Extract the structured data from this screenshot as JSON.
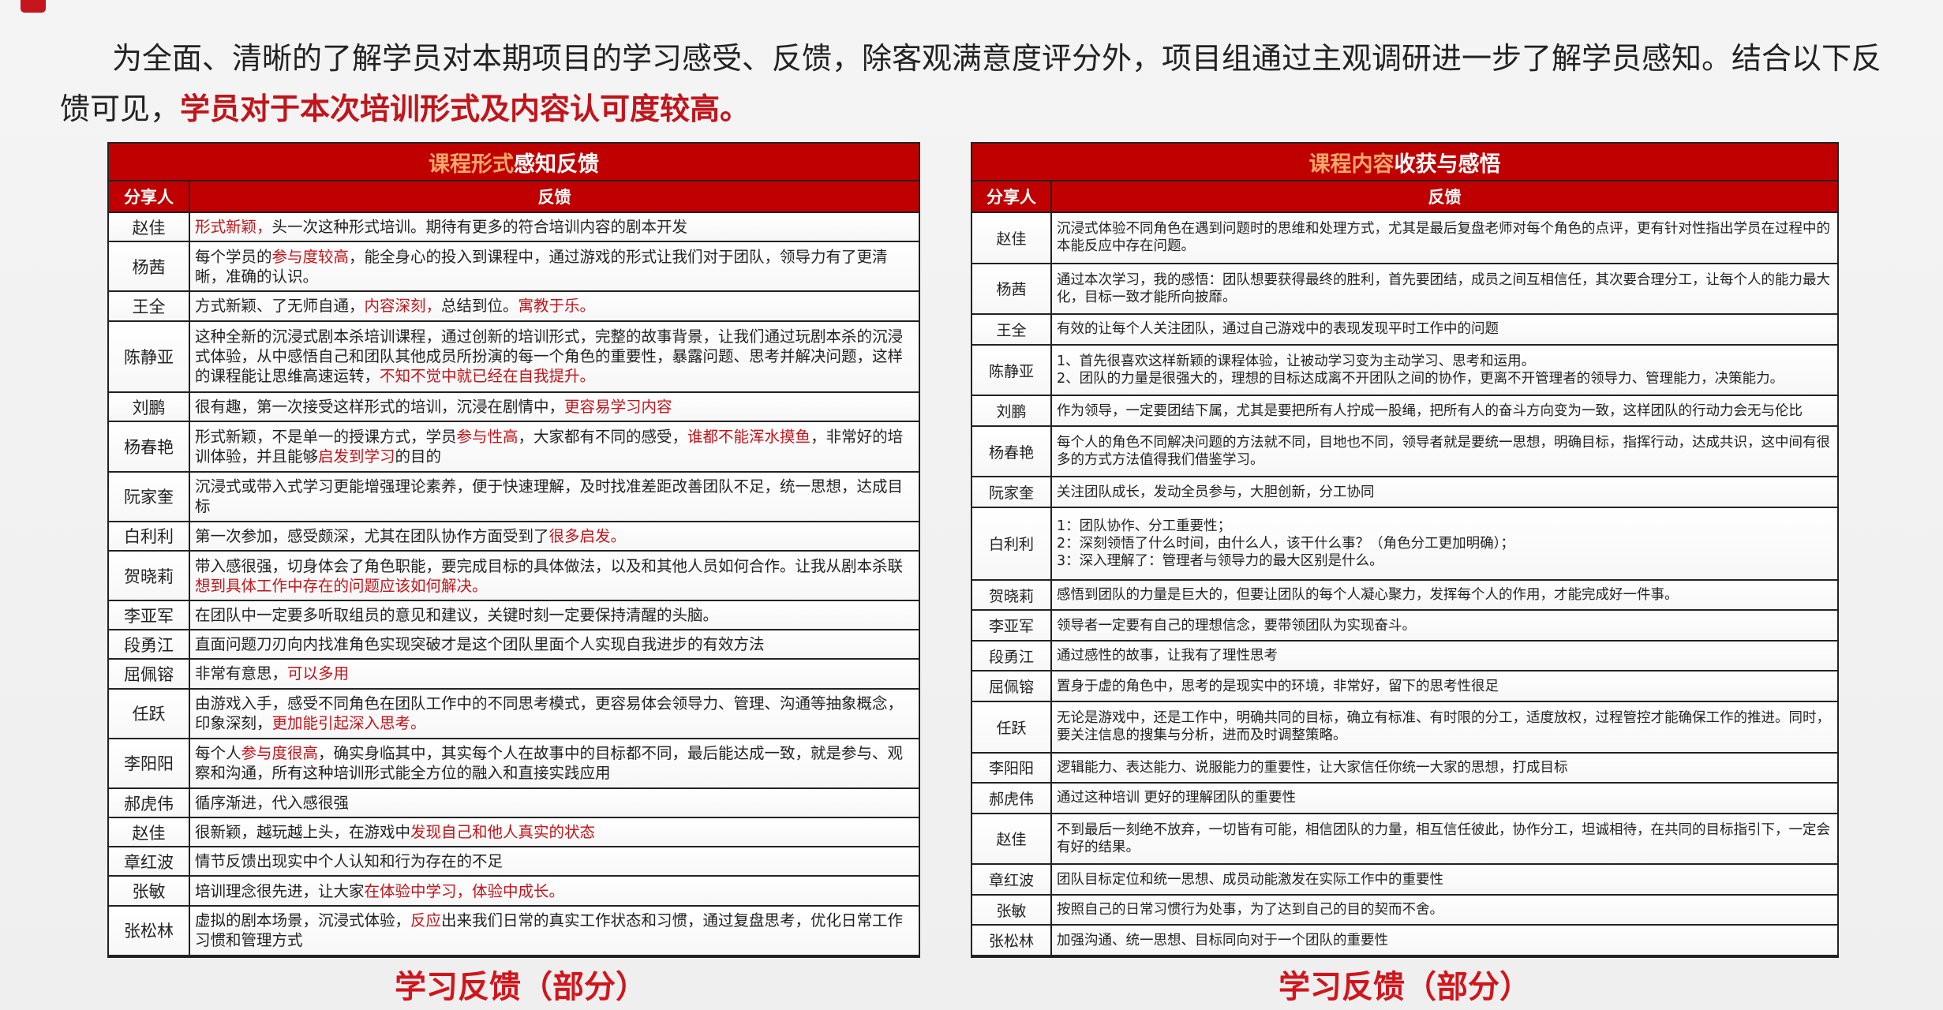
{
  "intro": {
    "text": "为全面、清晰的了解学员对本期项目的学习感受、反馈，除客观满意度评分外，项目组通过主观调研进一步了解学员感知。结合以下反馈可见，",
    "highlight": "学员对于本次培训形式及内容认可度较高。"
  },
  "colors": {
    "header_red": "#c00000",
    "highlight_red": "#c0151b",
    "title_orange": "#f6a66a"
  },
  "watermark": "学习反馈（部分）",
  "left_table": {
    "title_highlight": "课程形式",
    "title_rest": "感知反馈",
    "col_name": "分享人",
    "col_feedback": "反馈",
    "rows": [
      {
        "name": "赵佳",
        "segments": [
          {
            "t": "形式新颖，",
            "hl": true
          },
          {
            "t": "头一次这种形式培训。期待有更多的符合培训内容的剧本开发"
          }
        ]
      },
      {
        "name": "杨茜",
        "segments": [
          {
            "t": "每个学员的"
          },
          {
            "t": "参与度较高",
            "hl": true
          },
          {
            "t": "，能全身心的投入到课程中，通过游戏的形式让我们对于团队，领导力有了更清晰，准确的认识。"
          }
        ]
      },
      {
        "name": "王全",
        "segments": [
          {
            "t": "方式新颖、了无师自通，"
          },
          {
            "t": "内容深刻，",
            "hl": true
          },
          {
            "t": "总结到位。"
          },
          {
            "t": "寓教于乐。",
            "hl": true
          }
        ]
      },
      {
        "name": "陈静亚",
        "segments": [
          {
            "t": "这种全新的沉浸式剧本杀培训课程，通过创新的培训形式，完整的故事背景，让我们通过玩剧本杀的沉浸式体验，从中感悟自己和团队其他成员所扮演的每一个角色的重要性，暴露问题、思考并解决问题，这样的课程能让思维高速运转，"
          },
          {
            "t": "不知不觉中就已经在自我提升。",
            "hl": true
          }
        ]
      },
      {
        "name": "刘鹏",
        "segments": [
          {
            "t": "很有趣，第一次接受这样形式的培训，沉浸在剧情中，"
          },
          {
            "t": "更容易学习内容",
            "hl": true
          }
        ]
      },
      {
        "name": "杨春艳",
        "segments": [
          {
            "t": "形式新颖，不是单一的授课方式，学员"
          },
          {
            "t": "参与性高",
            "hl": true
          },
          {
            "t": "，大家都有不同的感受，"
          },
          {
            "t": "谁都不能浑水摸鱼",
            "hl": true
          },
          {
            "t": "，非常好的培训体验，并且能够"
          },
          {
            "t": "启发到学习",
            "hl": true
          },
          {
            "t": "的目的"
          }
        ]
      },
      {
        "name": "阮家奎",
        "segments": [
          {
            "t": "沉浸式或带入式学习更能增强理论素养，便于快速理解，及时找准差距改善团队不足，统一思想，达成目标"
          }
        ]
      },
      {
        "name": "白利利",
        "segments": [
          {
            "t": "第一次参加，感受颇深，尤其在团队协作方面受到了"
          },
          {
            "t": "很多启发。",
            "hl": true
          }
        ]
      },
      {
        "name": "贺晓莉",
        "segments": [
          {
            "t": "带入感很强，切身体会了角色职能，要完成目标的具体做法，以及和其他人员如何合作。让我从剧本杀联"
          },
          {
            "t": "想到具体工作中存在的问题应该如何解决。",
            "hl": true
          }
        ]
      },
      {
        "name": "李亚军",
        "segments": [
          {
            "t": "在团队中一定要多听取组员的意见和建议，关键时刻一定要保持清醒的头脑。"
          }
        ]
      },
      {
        "name": "段勇江",
        "segments": [
          {
            "t": "直面问题刀刃向内找准角色实现突破才是这个团队里面个人实现自我进步的有效方法"
          }
        ]
      },
      {
        "name": "屈佩镕",
        "segments": [
          {
            "t": "非常有意思，"
          },
          {
            "t": "可以多用",
            "hl": true
          }
        ]
      },
      {
        "name": "任跃",
        "segments": [
          {
            "t": "由游戏入手，感受不同角色在团队工作中的不同思考模式，更容易体会领导力、管理、沟通等抽象概念，印象深刻，"
          },
          {
            "t": "更加能引起深入思考。",
            "hl": true
          }
        ]
      },
      {
        "name": "李阳阳",
        "segments": [
          {
            "t": "每个人"
          },
          {
            "t": "参与度很高",
            "hl": true
          },
          {
            "t": "，确实身临其中，其实每个人在故事中的目标都不同，最后能达成一致，就是参与、观察和沟通，所有这种培训形式能全方位的融入和直接实践应用"
          }
        ]
      },
      {
        "name": "郝虎伟",
        "segments": [
          {
            "t": "循序渐进，代入感很强"
          }
        ]
      },
      {
        "name": "赵佳",
        "segments": [
          {
            "t": "很新颖，越玩越上头，在游戏中"
          },
          {
            "t": "发现自己和他人真实的状态",
            "hl": true
          }
        ]
      },
      {
        "name": "章红波",
        "segments": [
          {
            "t": "情节反馈出现实中个人认知和行为存在的不足"
          }
        ]
      },
      {
        "name": "张敏",
        "segments": [
          {
            "t": "培训理念很先进，让大家"
          },
          {
            "t": "在体验中学习，体验中成长。",
            "hl": true
          }
        ]
      },
      {
        "name": "张松林",
        "segments": [
          {
            "t": "虚拟的剧本场景，沉浸式体验，"
          },
          {
            "t": "反应",
            "hl": true
          },
          {
            "t": "出来我们日常的真实工作状态和习惯，通过复盘思考，优化日常工作习惯和管理方式"
          }
        ]
      }
    ]
  },
  "right_table": {
    "title_highlight": "课程内容",
    "title_rest": "收获与感悟",
    "col_name": "分享人",
    "col_feedback": "反馈",
    "rows": [
      {
        "name": "赵佳",
        "segments": [
          {
            "t": "沉浸式体验不同角色在遇到问题时的思维和处理方式，尤其是最后复盘老师对每个角色的点评，更有针对性指出学员在过程中的本能反应中存在问题。"
          }
        ]
      },
      {
        "name": "杨茜",
        "segments": [
          {
            "t": "通过本次学习，我的感悟：团队想要获得最终的胜利，首先要团结，成员之间互相信任，其次要合理分工，让每个人的能力最大化，目标一致才能所向披靡。"
          }
        ]
      },
      {
        "name": "王全",
        "segments": [
          {
            "t": "有效的让每个人关注团队，通过自己游戏中的表现发现平时工作中的问题"
          }
        ]
      },
      {
        "name": "陈静亚",
        "segments": [
          {
            "t": "1、首先很喜欢这样新颖的课程体验，让被动学习变为主动学习、思考和运用。\n2、团队的力量是很强大的，理想的目标达成离不开团队之间的协作，更离不开管理者的领导力、管理能力，决策能力。"
          }
        ]
      },
      {
        "name": "刘鹏",
        "segments": [
          {
            "t": "作为领导，一定要团结下属，尤其是要把所有人拧成一股绳，把所有人的奋斗方向变为一致，这样团队的行动力会无与伦比"
          }
        ]
      },
      {
        "name": "杨春艳",
        "segments": [
          {
            "t": "每个人的角色不同解决问题的方法就不同，目地也不同，领导者就是要统一思想，明确目标，指挥行动，达成共识，这中间有很多的方式方法值得我们借鉴学习。"
          }
        ]
      },
      {
        "name": "阮家奎",
        "segments": [
          {
            "t": "关注团队成长，发动全员参与，大胆创新，分工协同"
          }
        ]
      },
      {
        "name": "白利利",
        "segments": [
          {
            "t": "1：团队协作、分工重要性；\n2：深刻领悟了什么时间，由什么人，该干什么事？（角色分工更加明确）；\n3：深入理解了：管理者与领导力的最大区别是什么。"
          }
        ]
      },
      {
        "name": "贺晓莉",
        "segments": [
          {
            "t": "感悟到团队的力量是巨大的，但要让团队的每个人凝心聚力，发挥每个人的作用，才能完成好一件事。"
          }
        ]
      },
      {
        "name": "李亚军",
        "segments": [
          {
            "t": "领导者一定要有自己的理想信念，要带领团队为实现奋斗。"
          }
        ]
      },
      {
        "name": "段勇江",
        "segments": [
          {
            "t": "通过感性的故事，让我有了理性思考"
          }
        ]
      },
      {
        "name": "屈佩镕",
        "segments": [
          {
            "t": "置身于虚的角色中，思考的是现实中的环境，非常好，留下的思考性很足"
          }
        ]
      },
      {
        "name": "任跃",
        "segments": [
          {
            "t": "无论是游戏中，还是工作中，明确共同的目标，确立有标准、有时限的分工，适度放权，过程管控才能确保工作的推进。同时，要关注信息的搜集与分析，进而及时调整策略。"
          }
        ]
      },
      {
        "name": "李阳阳",
        "segments": [
          {
            "t": "逻辑能力、表达能力、说服能力的重要性，让大家信任你统一大家的思想，打成目标"
          }
        ]
      },
      {
        "name": "郝虎伟",
        "segments": [
          {
            "t": "通过这种培训 更好的理解团队的重要性"
          }
        ]
      },
      {
        "name": "赵佳",
        "segments": [
          {
            "t": "不到最后一刻绝不放弃，一切皆有可能，相信团队的力量，相互信任彼此，协作分工，坦诚相待，在共同的目标指引下，一定会有好的结果。"
          }
        ]
      },
      {
        "name": "章红波",
        "segments": [
          {
            "t": "团队目标定位和统一思想、成员动能激发在实际工作中的重要性"
          }
        ]
      },
      {
        "name": "张敏",
        "segments": [
          {
            "t": "按照自己的日常习惯行为处事，为了达到自己的目的契而不舍。"
          }
        ]
      },
      {
        "name": "张松林",
        "segments": [
          {
            "t": "加强沟通、统一思想、目标同向对于一个团队的重要性"
          }
        ]
      }
    ]
  }
}
